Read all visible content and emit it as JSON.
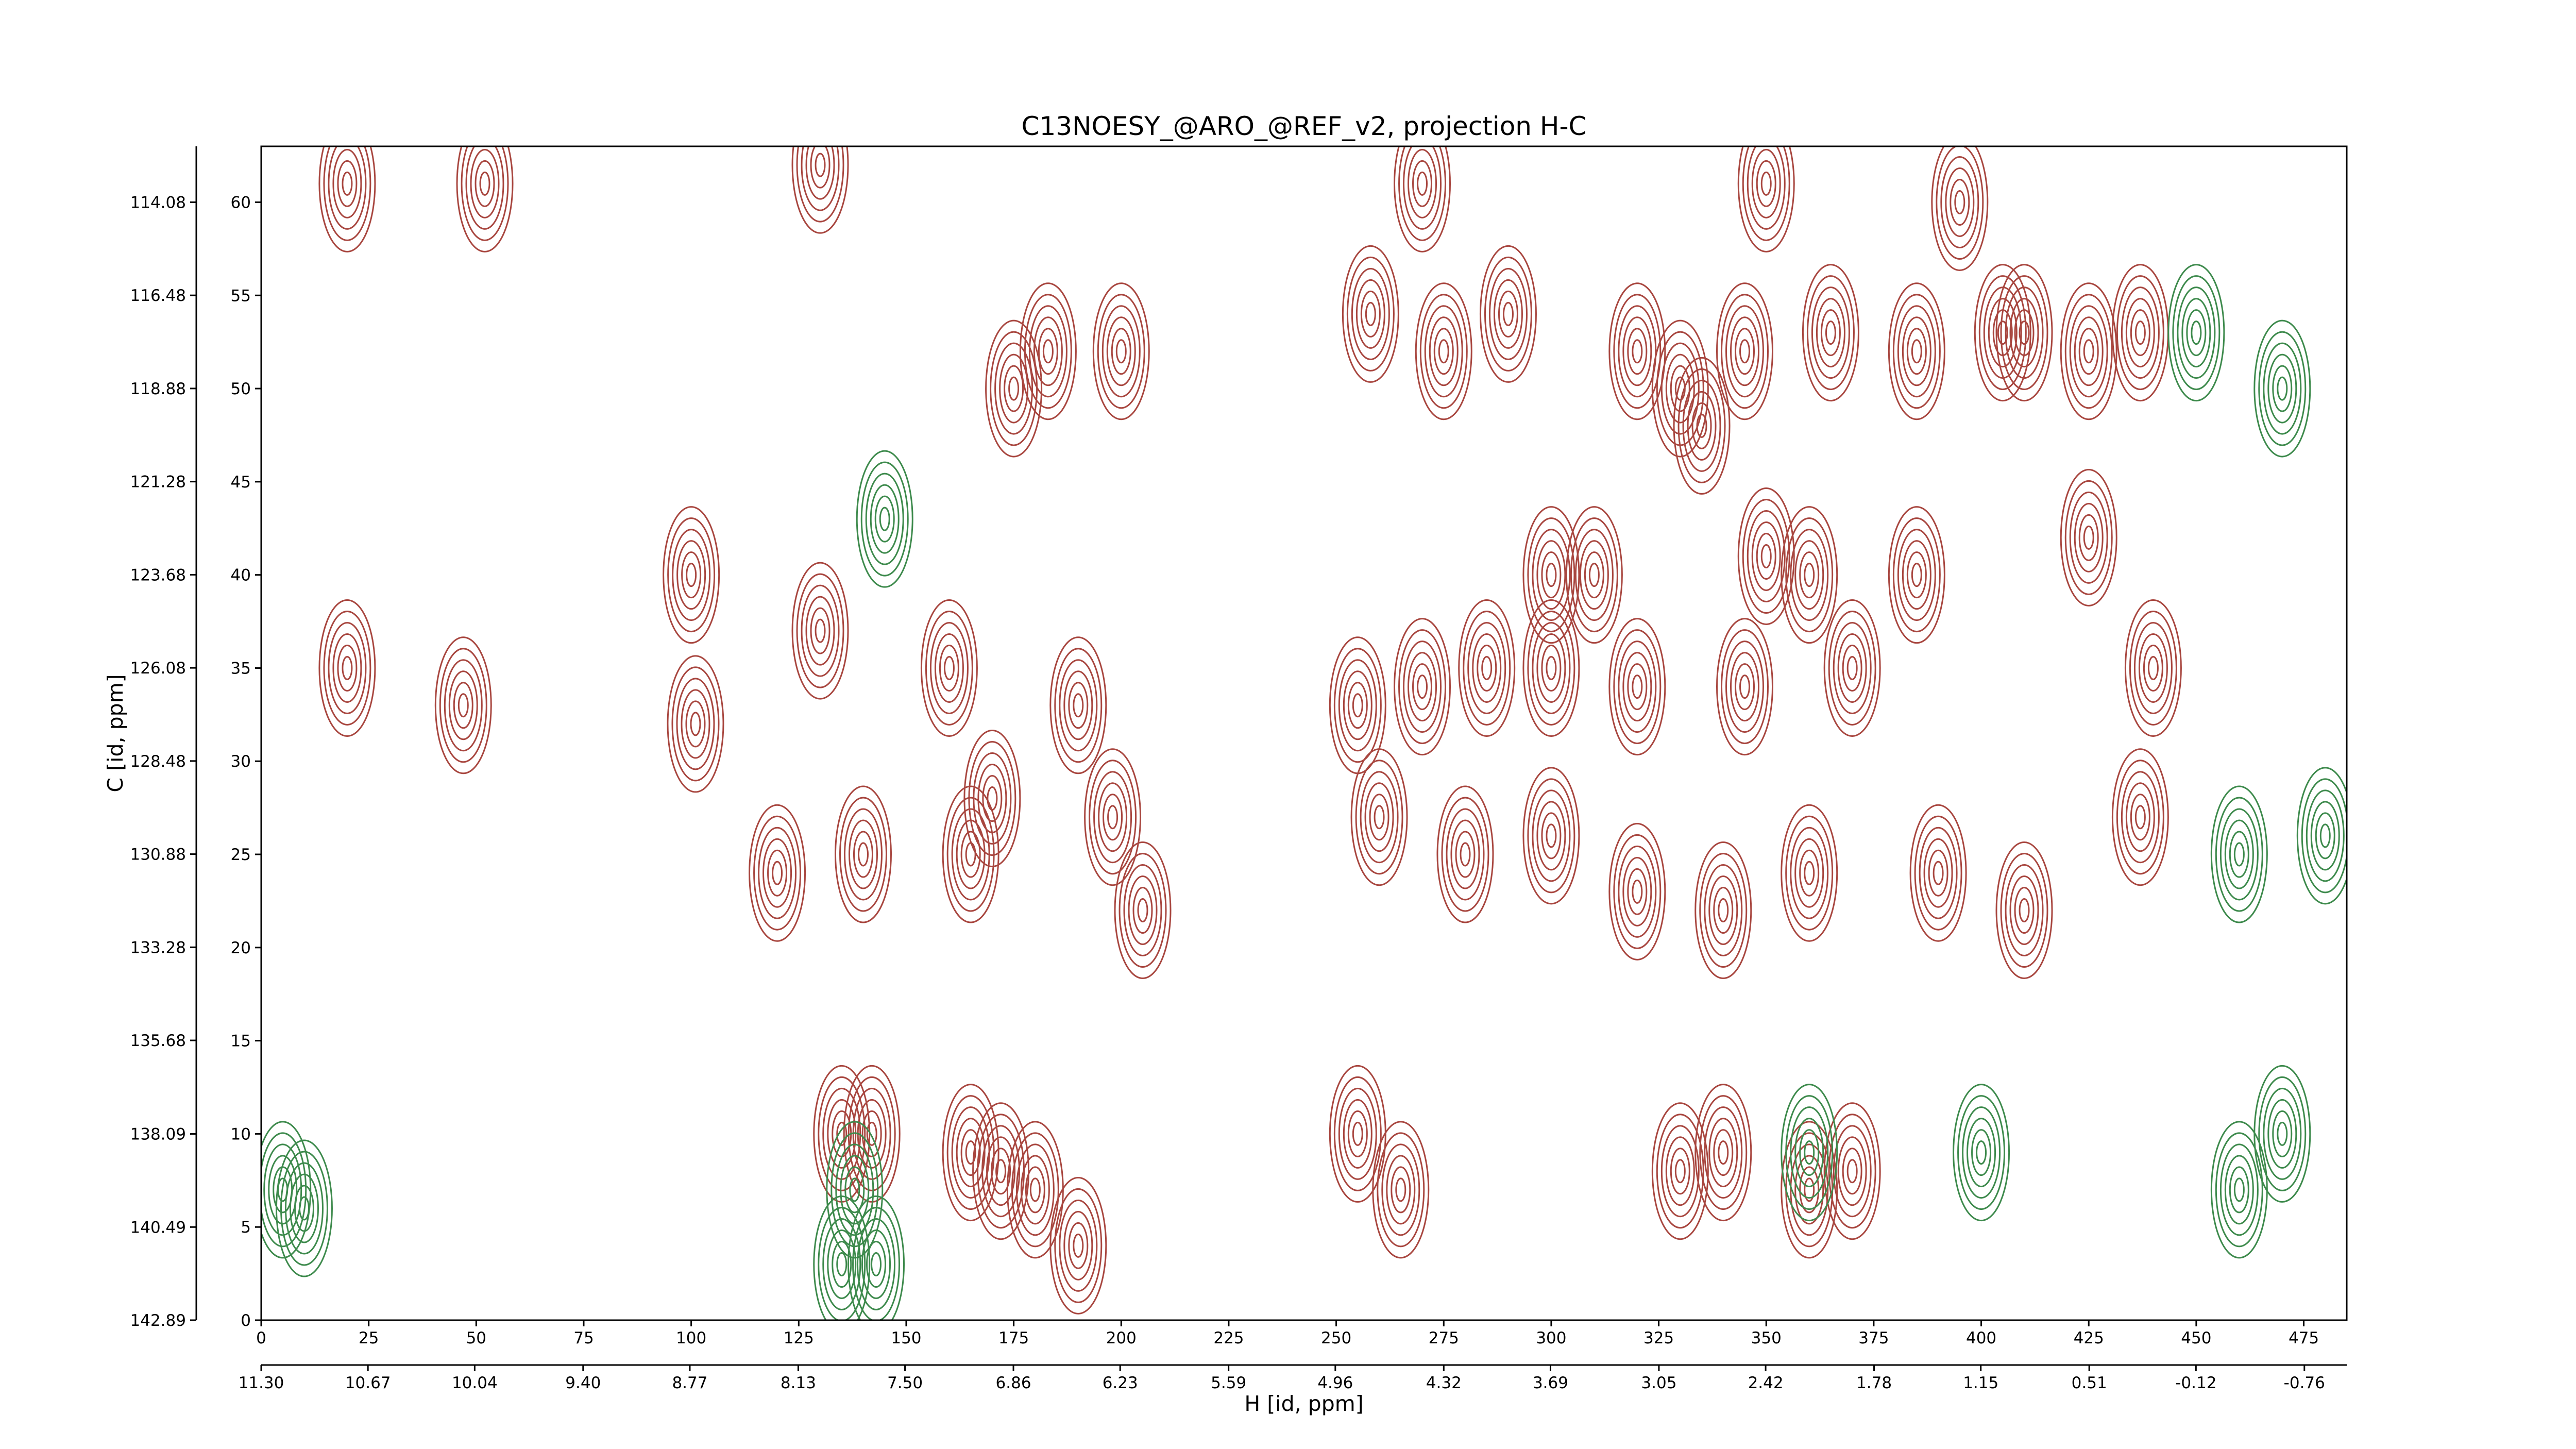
{
  "chart_data": {
    "type": "contour",
    "title": "C13NOESY_@ARO_@REF_v2, projection H-C",
    "xlabel": "H [id, ppm]",
    "ylabel": "C [id, ppm]",
    "xlim": [
      0,
      485
    ],
    "xticks": [
      0,
      25,
      50,
      75,
      100,
      125,
      150,
      175,
      200,
      225,
      250,
      275,
      300,
      325,
      350,
      375,
      400,
      425,
      450,
      475
    ],
    "x2lim": [
      11.3,
      -1.01
    ],
    "x2ticks": [
      {
        "value": 11.3,
        "label": "11.30"
      },
      {
        "value": 10.67,
        "label": "10.67"
      },
      {
        "value": 10.04,
        "label": "10.04"
      },
      {
        "value": 9.4,
        "label": "9.40"
      },
      {
        "value": 8.77,
        "label": "8.77"
      },
      {
        "value": 8.13,
        "label": "8.13"
      },
      {
        "value": 7.5,
        "label": "7.50"
      },
      {
        "value": 6.86,
        "label": "6.86"
      },
      {
        "value": 6.23,
        "label": "6.23"
      },
      {
        "value": 5.59,
        "label": "5.59"
      },
      {
        "value": 4.96,
        "label": "4.96"
      },
      {
        "value": 4.32,
        "label": "4.32"
      },
      {
        "value": 3.69,
        "label": "3.69"
      },
      {
        "value": 3.05,
        "label": "3.05"
      },
      {
        "value": 2.42,
        "label": "2.42"
      },
      {
        "value": 1.78,
        "label": "1.78"
      },
      {
        "value": 1.15,
        "label": "1.15"
      },
      {
        "value": 0.51,
        "label": "0.51"
      },
      {
        "value": -0.12,
        "label": "-0.12"
      },
      {
        "value": -0.76,
        "label": "-0.76"
      }
    ],
    "ylim": [
      0,
      63
    ],
    "yticks": [
      0,
      5,
      10,
      15,
      20,
      25,
      30,
      35,
      40,
      45,
      50,
      55,
      60
    ],
    "y2lim": [
      142.89,
      112.64
    ],
    "y2ticks": [
      142.89,
      140.49,
      138.09,
      135.68,
      133.28,
      130.88,
      128.48,
      126.08,
      123.68,
      121.28,
      118.88,
      116.48,
      114.08
    ],
    "series": [
      {
        "color": "#a8463f",
        "x": [
          47,
          20,
          52,
          20,
          120,
          140,
          130,
          160,
          165,
          170,
          175,
          183,
          200,
          190,
          198,
          205,
          258,
          275,
          290,
          320,
          330,
          335,
          345,
          365,
          385,
          405,
          410,
          425,
          437,
          255,
          270,
          285,
          300,
          320,
          345,
          370,
          440,
          260,
          280,
          300,
          320,
          340,
          360,
          390,
          410,
          437,
          300,
          310,
          350,
          360,
          385,
          425,
          135,
          142,
          165,
          172,
          180,
          190,
          255,
          265,
          330,
          340,
          360,
          370,
          100,
          101,
          130,
          270,
          350,
          395
        ],
        "y": [
          33,
          35,
          61,
          61,
          24,
          25,
          37,
          35,
          25,
          28,
          50,
          52,
          52,
          33,
          27,
          22,
          54,
          52,
          54,
          52,
          50,
          48,
          52,
          53,
          52,
          53,
          53,
          52,
          53,
          33,
          34,
          35,
          35,
          34,
          34,
          35,
          35,
          27,
          25,
          26,
          23,
          22,
          24,
          24,
          22,
          27,
          40,
          40,
          41,
          40,
          40,
          42,
          10,
          10,
          9,
          8,
          7,
          4,
          10,
          7,
          8,
          9,
          7,
          8,
          40,
          32,
          62,
          61,
          61,
          60
        ]
      },
      {
        "color": "#3d8a4c",
        "x": [
          145,
          138,
          143,
          450,
          470,
          460,
          480,
          360,
          400,
          470,
          460,
          5,
          10,
          135
        ],
        "y": [
          43,
          7,
          3,
          53,
          50,
          25,
          26,
          9,
          9,
          10,
          7,
          7,
          6,
          3
        ]
      }
    ]
  }
}
